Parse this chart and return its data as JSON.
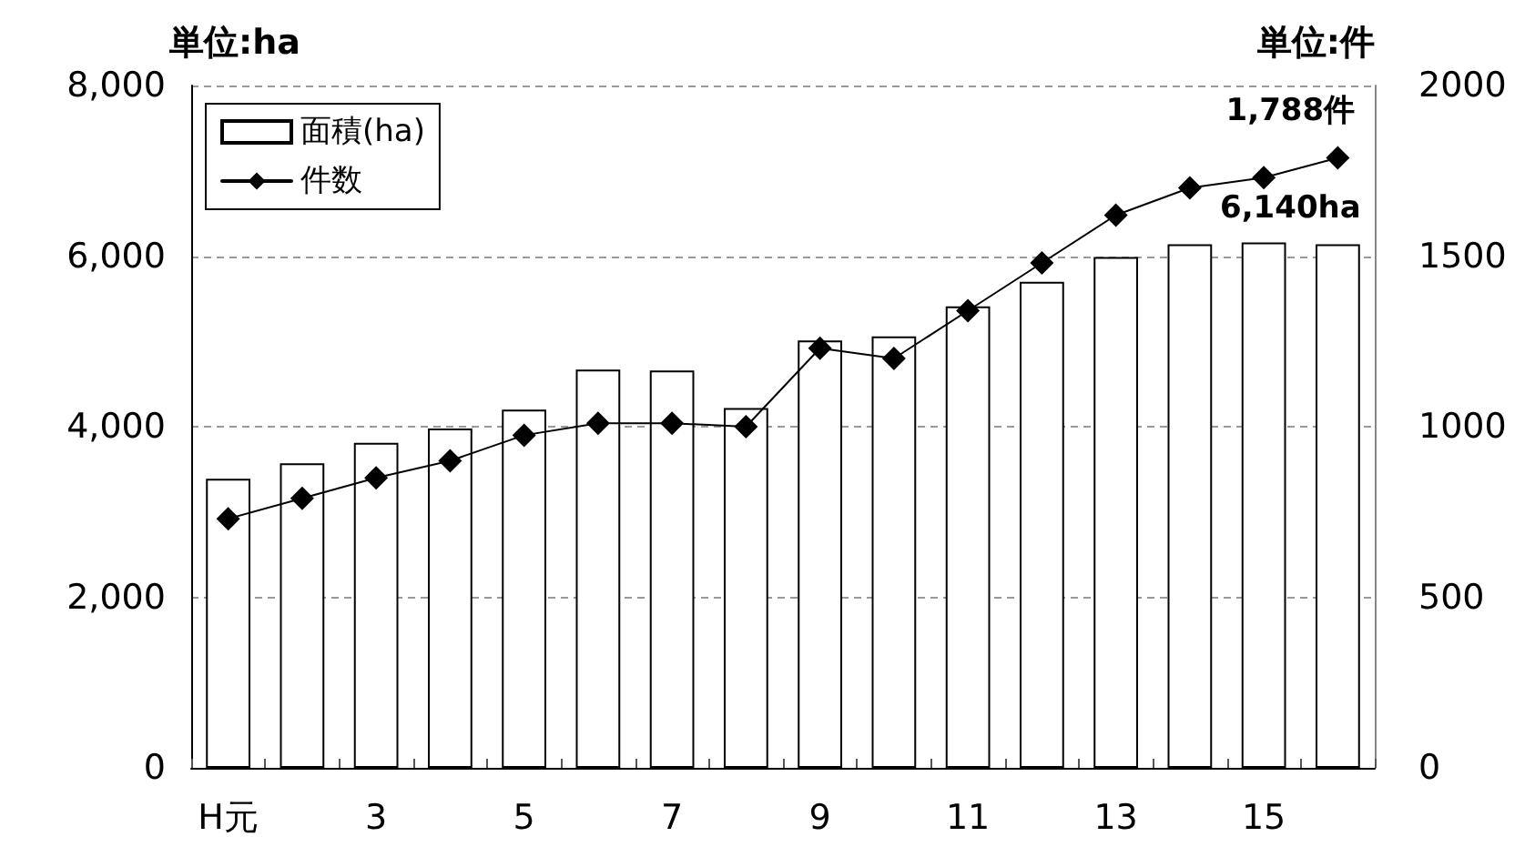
{
  "chart_data": {
    "type": "bar",
    "ylabel": "単位:ha",
    "y2label": "単位:件",
    "categories": [
      "H元",
      null,
      "3",
      null,
      "5",
      null,
      "7",
      null,
      "9",
      null,
      "11",
      null,
      "13",
      null,
      "15",
      null
    ],
    "series": [
      {
        "name": "面積(ha)",
        "color": "#ffffff",
        "values": [
          3390,
          3570,
          3810,
          3980,
          4200,
          4670,
          4660,
          4220,
          5010,
          5060,
          5410,
          5700,
          5990,
          6140,
          6160,
          6140
        ],
        "value_labels": [
          null,
          null,
          null,
          null,
          null,
          null,
          null,
          null,
          null,
          null,
          null,
          null,
          null,
          null,
          null,
          "6,140ha"
        ]
      },
      {
        "name": "件数",
        "type": "line",
        "axis": "y2",
        "color": "#000000",
        "values": [
          730,
          790,
          850,
          900,
          975,
          1010,
          1010,
          1000,
          1230,
          1200,
          1340,
          1480,
          1620,
          1700,
          1730,
          1788
        ],
        "value_labels": [
          null,
          null,
          null,
          null,
          null,
          null,
          null,
          null,
          null,
          null,
          null,
          null,
          null,
          null,
          null,
          "1,788件"
        ]
      }
    ],
    "ylim": [
      0,
      8000
    ],
    "yticks": [
      0,
      {
        "value": 2000,
        "label": "2,000"
      },
      {
        "value": 4000,
        "label": "4,000"
      },
      {
        "value": 6000,
        "label": "6,000"
      },
      {
        "value": 8000,
        "label": "8,000"
      }
    ],
    "y2lim": [
      0,
      2000
    ],
    "y2ticks": [
      0,
      500,
      1000,
      1500,
      2000
    ],
    "grid": "y",
    "legend": "top left",
    "marker": "diamond"
  }
}
